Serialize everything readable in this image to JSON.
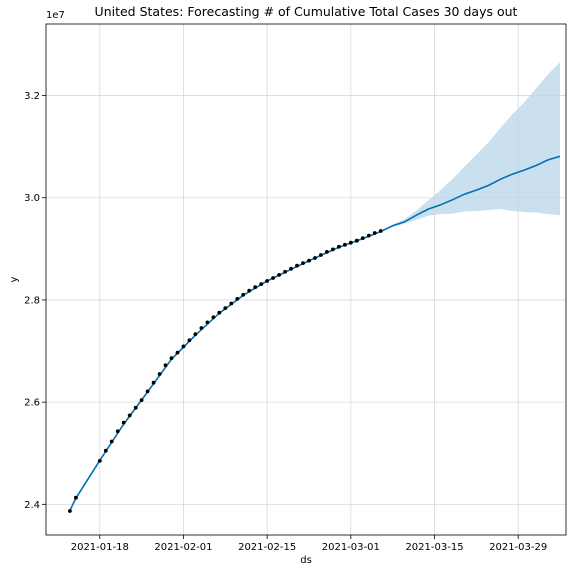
{
  "chart_data": {
    "type": "line",
    "title": "United States: Forecasting # of Cumulative Total Cases 30 days out",
    "xlabel": "ds",
    "ylabel": "y",
    "y_scale_label": "1e7",
    "x_range": [
      "2021-01-09",
      "2021-04-06"
    ],
    "y_range": [
      2.34,
      3.34
    ],
    "x_ticks": [
      {
        "date": "2021-01-18",
        "label": "2021-01-18"
      },
      {
        "date": "2021-02-01",
        "label": "2021-02-01"
      },
      {
        "date": "2021-02-15",
        "label": "2021-02-15"
      },
      {
        "date": "2021-03-01",
        "label": "2021-03-01"
      },
      {
        "date": "2021-03-15",
        "label": "2021-03-15"
      },
      {
        "date": "2021-03-29",
        "label": "2021-03-29"
      }
    ],
    "y_ticks": [
      {
        "value": 2.4,
        "label": "2.4"
      },
      {
        "value": 2.6,
        "label": "2.6"
      },
      {
        "value": 2.8,
        "label": "2.8"
      },
      {
        "value": 3.0,
        "label": "3.0"
      },
      {
        "value": 3.2,
        "label": "3.2"
      }
    ],
    "grid": true,
    "colors": {
      "forecast_line": "#0072B2",
      "uncertainty_band": "#b8d5ea",
      "observed_points": "#000000"
    },
    "series": [
      {
        "kind": "observed_points",
        "points": [
          [
            "2021-01-13",
            2.387
          ],
          [
            "2021-01-14",
            2.413
          ],
          [
            "2021-01-18",
            2.485
          ],
          [
            "2021-01-19",
            2.505
          ],
          [
            "2021-01-20",
            2.523
          ],
          [
            "2021-01-21",
            2.543
          ],
          [
            "2021-01-22",
            2.56
          ],
          [
            "2021-01-23",
            2.574
          ],
          [
            "2021-01-24",
            2.589
          ],
          [
            "2021-01-25",
            2.604
          ],
          [
            "2021-01-26",
            2.621
          ],
          [
            "2021-01-27",
            2.638
          ],
          [
            "2021-01-28",
            2.655
          ],
          [
            "2021-01-29",
            2.672
          ],
          [
            "2021-01-30",
            2.686
          ],
          [
            "2021-01-31",
            2.697
          ],
          [
            "2021-02-01",
            2.709
          ],
          [
            "2021-02-02",
            2.721
          ],
          [
            "2021-02-03",
            2.733
          ],
          [
            "2021-02-04",
            2.745
          ],
          [
            "2021-02-05",
            2.756
          ],
          [
            "2021-02-06",
            2.766
          ],
          [
            "2021-02-07",
            2.775
          ],
          [
            "2021-02-08",
            2.784
          ],
          [
            "2021-02-09",
            2.793
          ],
          [
            "2021-02-10",
            2.802
          ],
          [
            "2021-02-11",
            2.81
          ],
          [
            "2021-02-12",
            2.818
          ],
          [
            "2021-02-13",
            2.825
          ],
          [
            "2021-02-14",
            2.831
          ],
          [
            "2021-02-15",
            2.837
          ],
          [
            "2021-02-16",
            2.843
          ],
          [
            "2021-02-17",
            2.849
          ],
          [
            "2021-02-18",
            2.855
          ],
          [
            "2021-02-19",
            2.861
          ],
          [
            "2021-02-20",
            2.867
          ],
          [
            "2021-02-21",
            2.872
          ],
          [
            "2021-02-22",
            2.877
          ],
          [
            "2021-02-23",
            2.882
          ],
          [
            "2021-02-24",
            2.888
          ],
          [
            "2021-02-25",
            2.894
          ],
          [
            "2021-02-26",
            2.899
          ],
          [
            "2021-02-27",
            2.904
          ],
          [
            "2021-02-28",
            2.908
          ],
          [
            "2021-03-01",
            2.912
          ],
          [
            "2021-03-02",
            2.916
          ],
          [
            "2021-03-03",
            2.921
          ],
          [
            "2021-03-04",
            2.926
          ],
          [
            "2021-03-05",
            2.931
          ],
          [
            "2021-03-06",
            2.935
          ]
        ]
      },
      {
        "kind": "forecast_line",
        "points": [
          [
            "2021-01-13",
            2.388
          ],
          [
            "2021-01-14",
            2.412
          ],
          [
            "2021-01-18",
            2.486
          ],
          [
            "2021-01-22",
            2.557
          ],
          [
            "2021-01-26",
            2.62
          ],
          [
            "2021-01-30",
            2.684
          ],
          [
            "2021-02-03",
            2.731
          ],
          [
            "2021-02-07",
            2.774
          ],
          [
            "2021-02-11",
            2.809
          ],
          [
            "2021-02-15",
            2.837
          ],
          [
            "2021-02-19",
            2.86
          ],
          [
            "2021-02-23",
            2.882
          ],
          [
            "2021-02-27",
            2.903
          ],
          [
            "2021-03-03",
            2.92
          ],
          [
            "2021-03-06",
            2.934
          ],
          [
            "2021-03-08",
            2.945
          ],
          [
            "2021-03-10",
            2.953
          ],
          [
            "2021-03-12",
            2.966
          ],
          [
            "2021-03-14",
            2.978
          ],
          [
            "2021-03-16",
            2.986
          ],
          [
            "2021-03-18",
            2.996
          ],
          [
            "2021-03-20",
            3.007
          ],
          [
            "2021-03-22",
            3.015
          ],
          [
            "2021-03-24",
            3.024
          ],
          [
            "2021-03-26",
            3.036
          ],
          [
            "2021-03-28",
            3.046
          ],
          [
            "2021-03-30",
            3.054
          ],
          [
            "2021-04-01",
            3.063
          ],
          [
            "2021-04-03",
            3.074
          ],
          [
            "2021-04-05",
            3.081
          ]
        ]
      },
      {
        "kind": "uncertainty_band",
        "x": [
          "2021-03-06",
          "2021-03-08",
          "2021-03-10",
          "2021-03-12",
          "2021-03-14",
          "2021-03-16",
          "2021-03-18",
          "2021-03-20",
          "2021-03-22",
          "2021-03-24",
          "2021-03-26",
          "2021-03-28",
          "2021-03-30",
          "2021-04-01",
          "2021-04-03",
          "2021-04-05"
        ],
        "upper": [
          2.936,
          2.947,
          2.958,
          2.975,
          2.995,
          3.015,
          3.036,
          3.061,
          3.084,
          3.108,
          3.136,
          3.163,
          3.187,
          3.214,
          3.242,
          3.265
        ],
        "lower": [
          2.934,
          2.943,
          2.949,
          2.957,
          2.965,
          2.968,
          2.969,
          2.973,
          2.974,
          2.976,
          2.978,
          2.974,
          2.972,
          2.971,
          2.968,
          2.966
        ]
      }
    ]
  }
}
